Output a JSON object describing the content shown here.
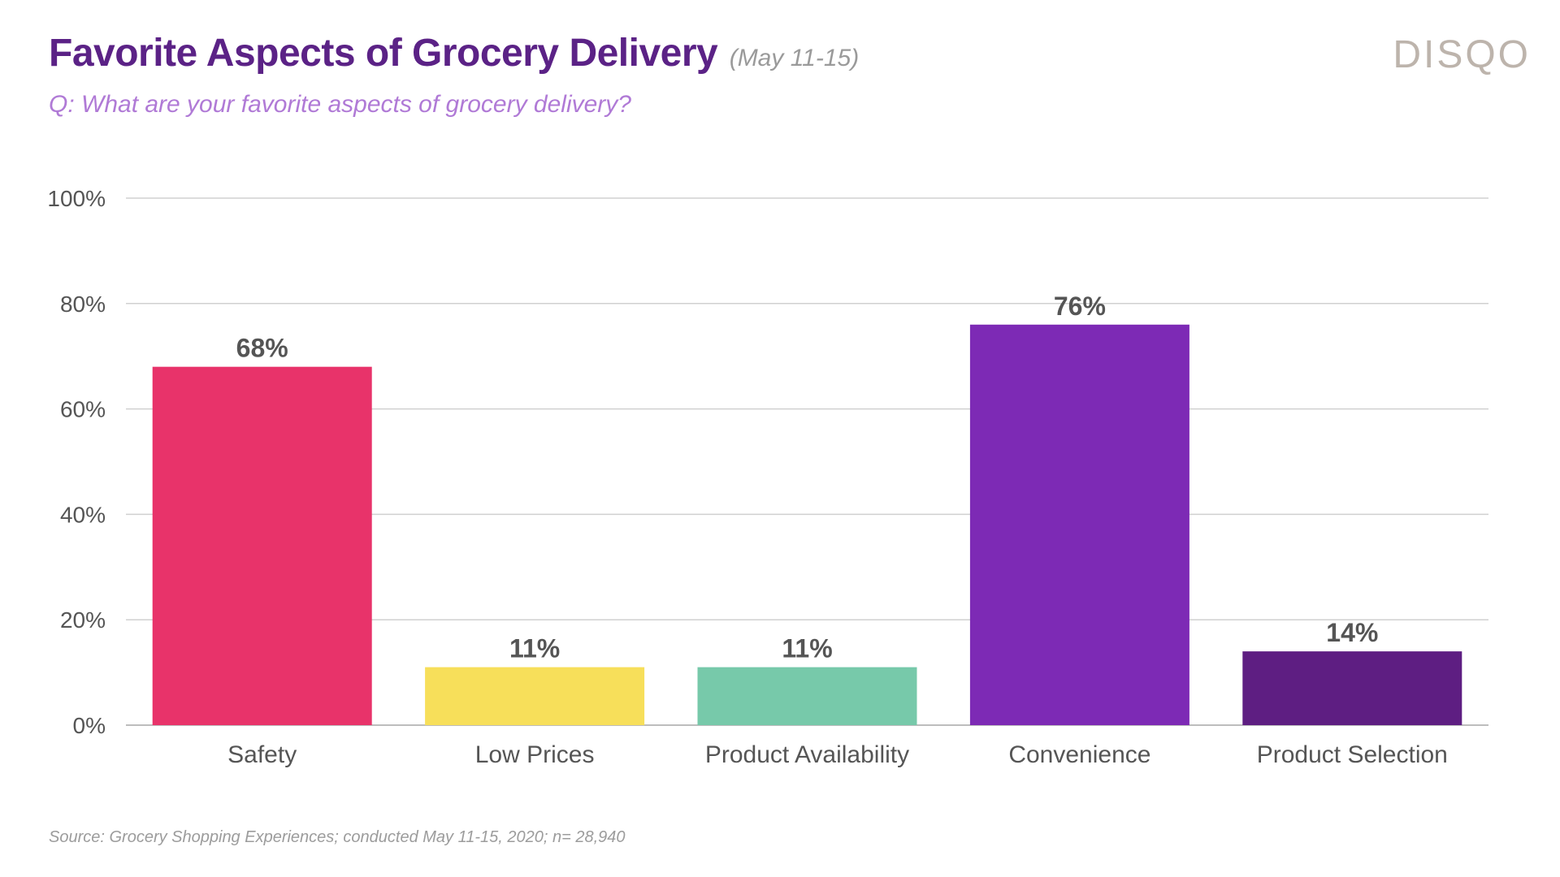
{
  "header": {
    "title": "Favorite Aspects of Grocery Delivery",
    "date_range": "(May 11-15)",
    "question": "Q: What are your favorite aspects of grocery delivery?",
    "logo": "DISQO"
  },
  "footer": {
    "source": "Source: Grocery Shopping Experiences; conducted May 11-15, 2020; n= 28,940"
  },
  "chart_data": {
    "type": "bar",
    "title": "Favorite Aspects of Grocery Delivery",
    "xlabel": "",
    "ylabel": "",
    "ylim": [
      0,
      100
    ],
    "y_ticks": [
      0,
      20,
      40,
      60,
      80,
      100
    ],
    "y_tick_labels": [
      "0%",
      "20%",
      "40%",
      "60%",
      "80%",
      "100%"
    ],
    "grid": true,
    "categories": [
      "Safety",
      "Low Prices",
      "Product Availability",
      "Convenience",
      "Product Selection"
    ],
    "values": [
      68,
      11,
      11,
      76,
      14
    ],
    "value_labels": [
      "68%",
      "11%",
      "11%",
      "76%",
      "14%"
    ],
    "colors": [
      "#e8336a",
      "#f7df5a",
      "#77c9aa",
      "#7d2ab5",
      "#5e1e82"
    ]
  }
}
